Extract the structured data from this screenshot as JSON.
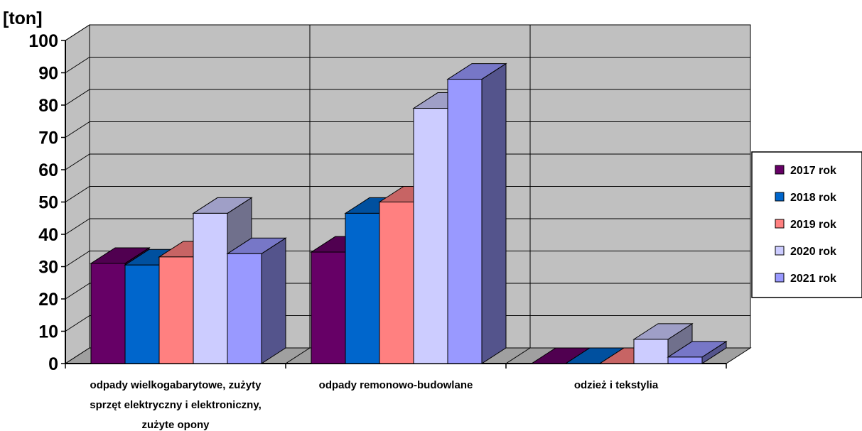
{
  "chart_data": {
    "type": "bar",
    "ylabel": "[ton]",
    "ylim": [
      0,
      100
    ],
    "yticks": [
      "0",
      "10",
      "20",
      "30",
      "40",
      "50",
      "60",
      "70",
      "80",
      "90",
      "100"
    ],
    "categories": [
      [
        "odpady wielkogabarytowe, zużyty",
        "sprzęt elektryczny i elektroniczny,",
        "zużyte opony"
      ],
      [
        "odpady remonowo-budowlane"
      ],
      [
        "odzież i tekstylia"
      ]
    ],
    "series": [
      {
        "name": "2017 rok",
        "color": "#660066",
        "values": [
          31,
          34.5,
          0
        ]
      },
      {
        "name": "2018 rok",
        "color": "#0066cc",
        "values": [
          30.5,
          46.5,
          0
        ]
      },
      {
        "name": "2019 rok",
        "color": "#ff8080",
        "values": [
          33,
          50,
          0
        ]
      },
      {
        "name": "2020 rok",
        "color": "#ccccff",
        "values": [
          46.5,
          79,
          7.5
        ]
      },
      {
        "name": "2021 rok",
        "color": "#9999ff",
        "values": [
          34,
          88,
          2
        ]
      }
    ],
    "legend_position": "right",
    "grid": true,
    "wall_color": "#c0c0c0"
  }
}
